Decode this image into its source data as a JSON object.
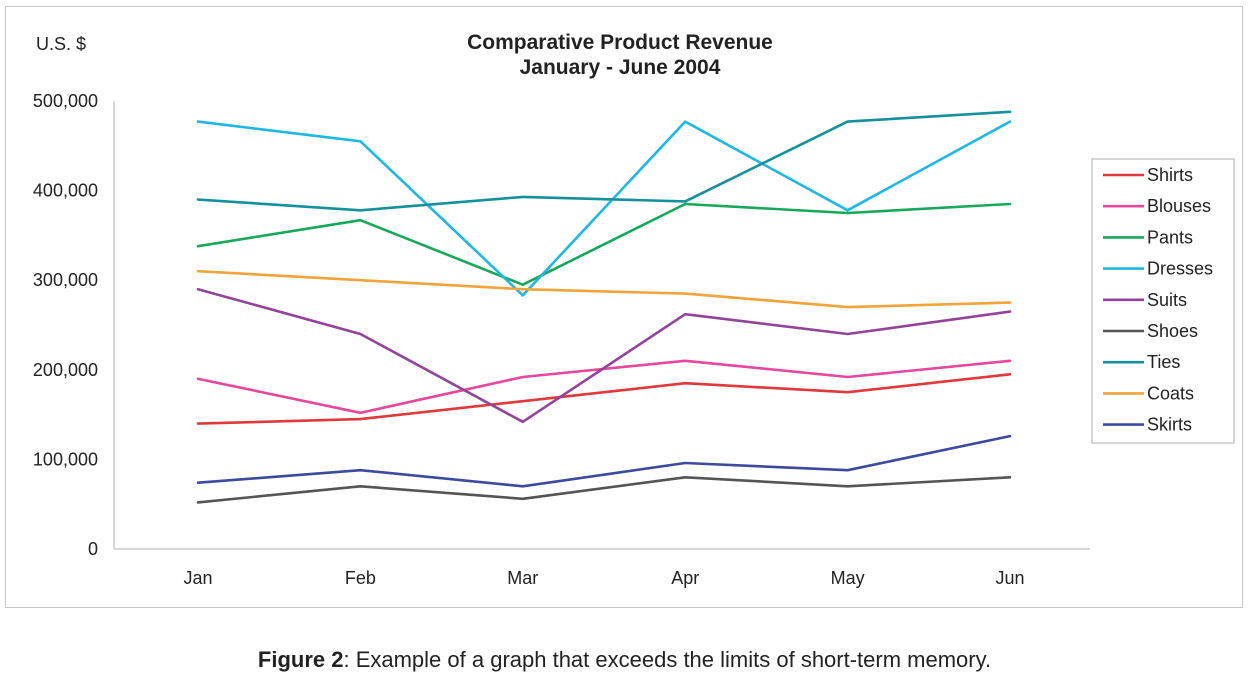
{
  "chart_data": {
    "type": "line",
    "title": "Comparative Product Revenue",
    "subtitle": "January - June 2004",
    "ylabel": "U.S. $",
    "xlabel": "",
    "categories": [
      "Jan",
      "Feb",
      "Mar",
      "Apr",
      "May",
      "Jun"
    ],
    "ylim": [
      0,
      500000
    ],
    "yticks": [
      0,
      100000,
      200000,
      300000,
      400000,
      500000
    ],
    "ytick_labels": [
      "0",
      "100,000",
      "200,000",
      "300,000",
      "400,000",
      "500,000"
    ],
    "grid": false,
    "legend": "right",
    "series": [
      {
        "name": "Shirts",
        "color": "#e0393b",
        "values": [
          140000,
          145000,
          165000,
          185000,
          175000,
          195000
        ]
      },
      {
        "name": "Blouses",
        "color": "#e8479e",
        "values": [
          190000,
          152000,
          192000,
          210000,
          192000,
          210000
        ]
      },
      {
        "name": "Pants",
        "color": "#17a85a",
        "values": [
          338000,
          367000,
          295000,
          385000,
          375000,
          385000
        ]
      },
      {
        "name": "Dresses",
        "color": "#1fb8e6",
        "values": [
          477000,
          455000,
          283000,
          477000,
          378000,
          477000
        ]
      },
      {
        "name": "Suits",
        "color": "#93449a",
        "values": [
          290000,
          240000,
          142000,
          262000,
          240000,
          265000
        ]
      },
      {
        "name": "Shoes",
        "color": "#555555",
        "values": [
          52000,
          70000,
          56000,
          80000,
          70000,
          80000
        ]
      },
      {
        "name": "Ties",
        "color": "#15919e",
        "values": [
          390000,
          378000,
          393000,
          388000,
          477000,
          488000
        ]
      },
      {
        "name": "Coats",
        "color": "#f2a33a",
        "values": [
          310000,
          300000,
          290000,
          285000,
          270000,
          275000
        ]
      },
      {
        "name": "Skirts",
        "color": "#3e4aa0",
        "values": [
          74000,
          88000,
          70000,
          96000,
          88000,
          126000
        ]
      }
    ]
  },
  "caption": {
    "label": "Figure 2",
    "text": ": Example of a graph that exceeds the limits of short-term memory."
  }
}
